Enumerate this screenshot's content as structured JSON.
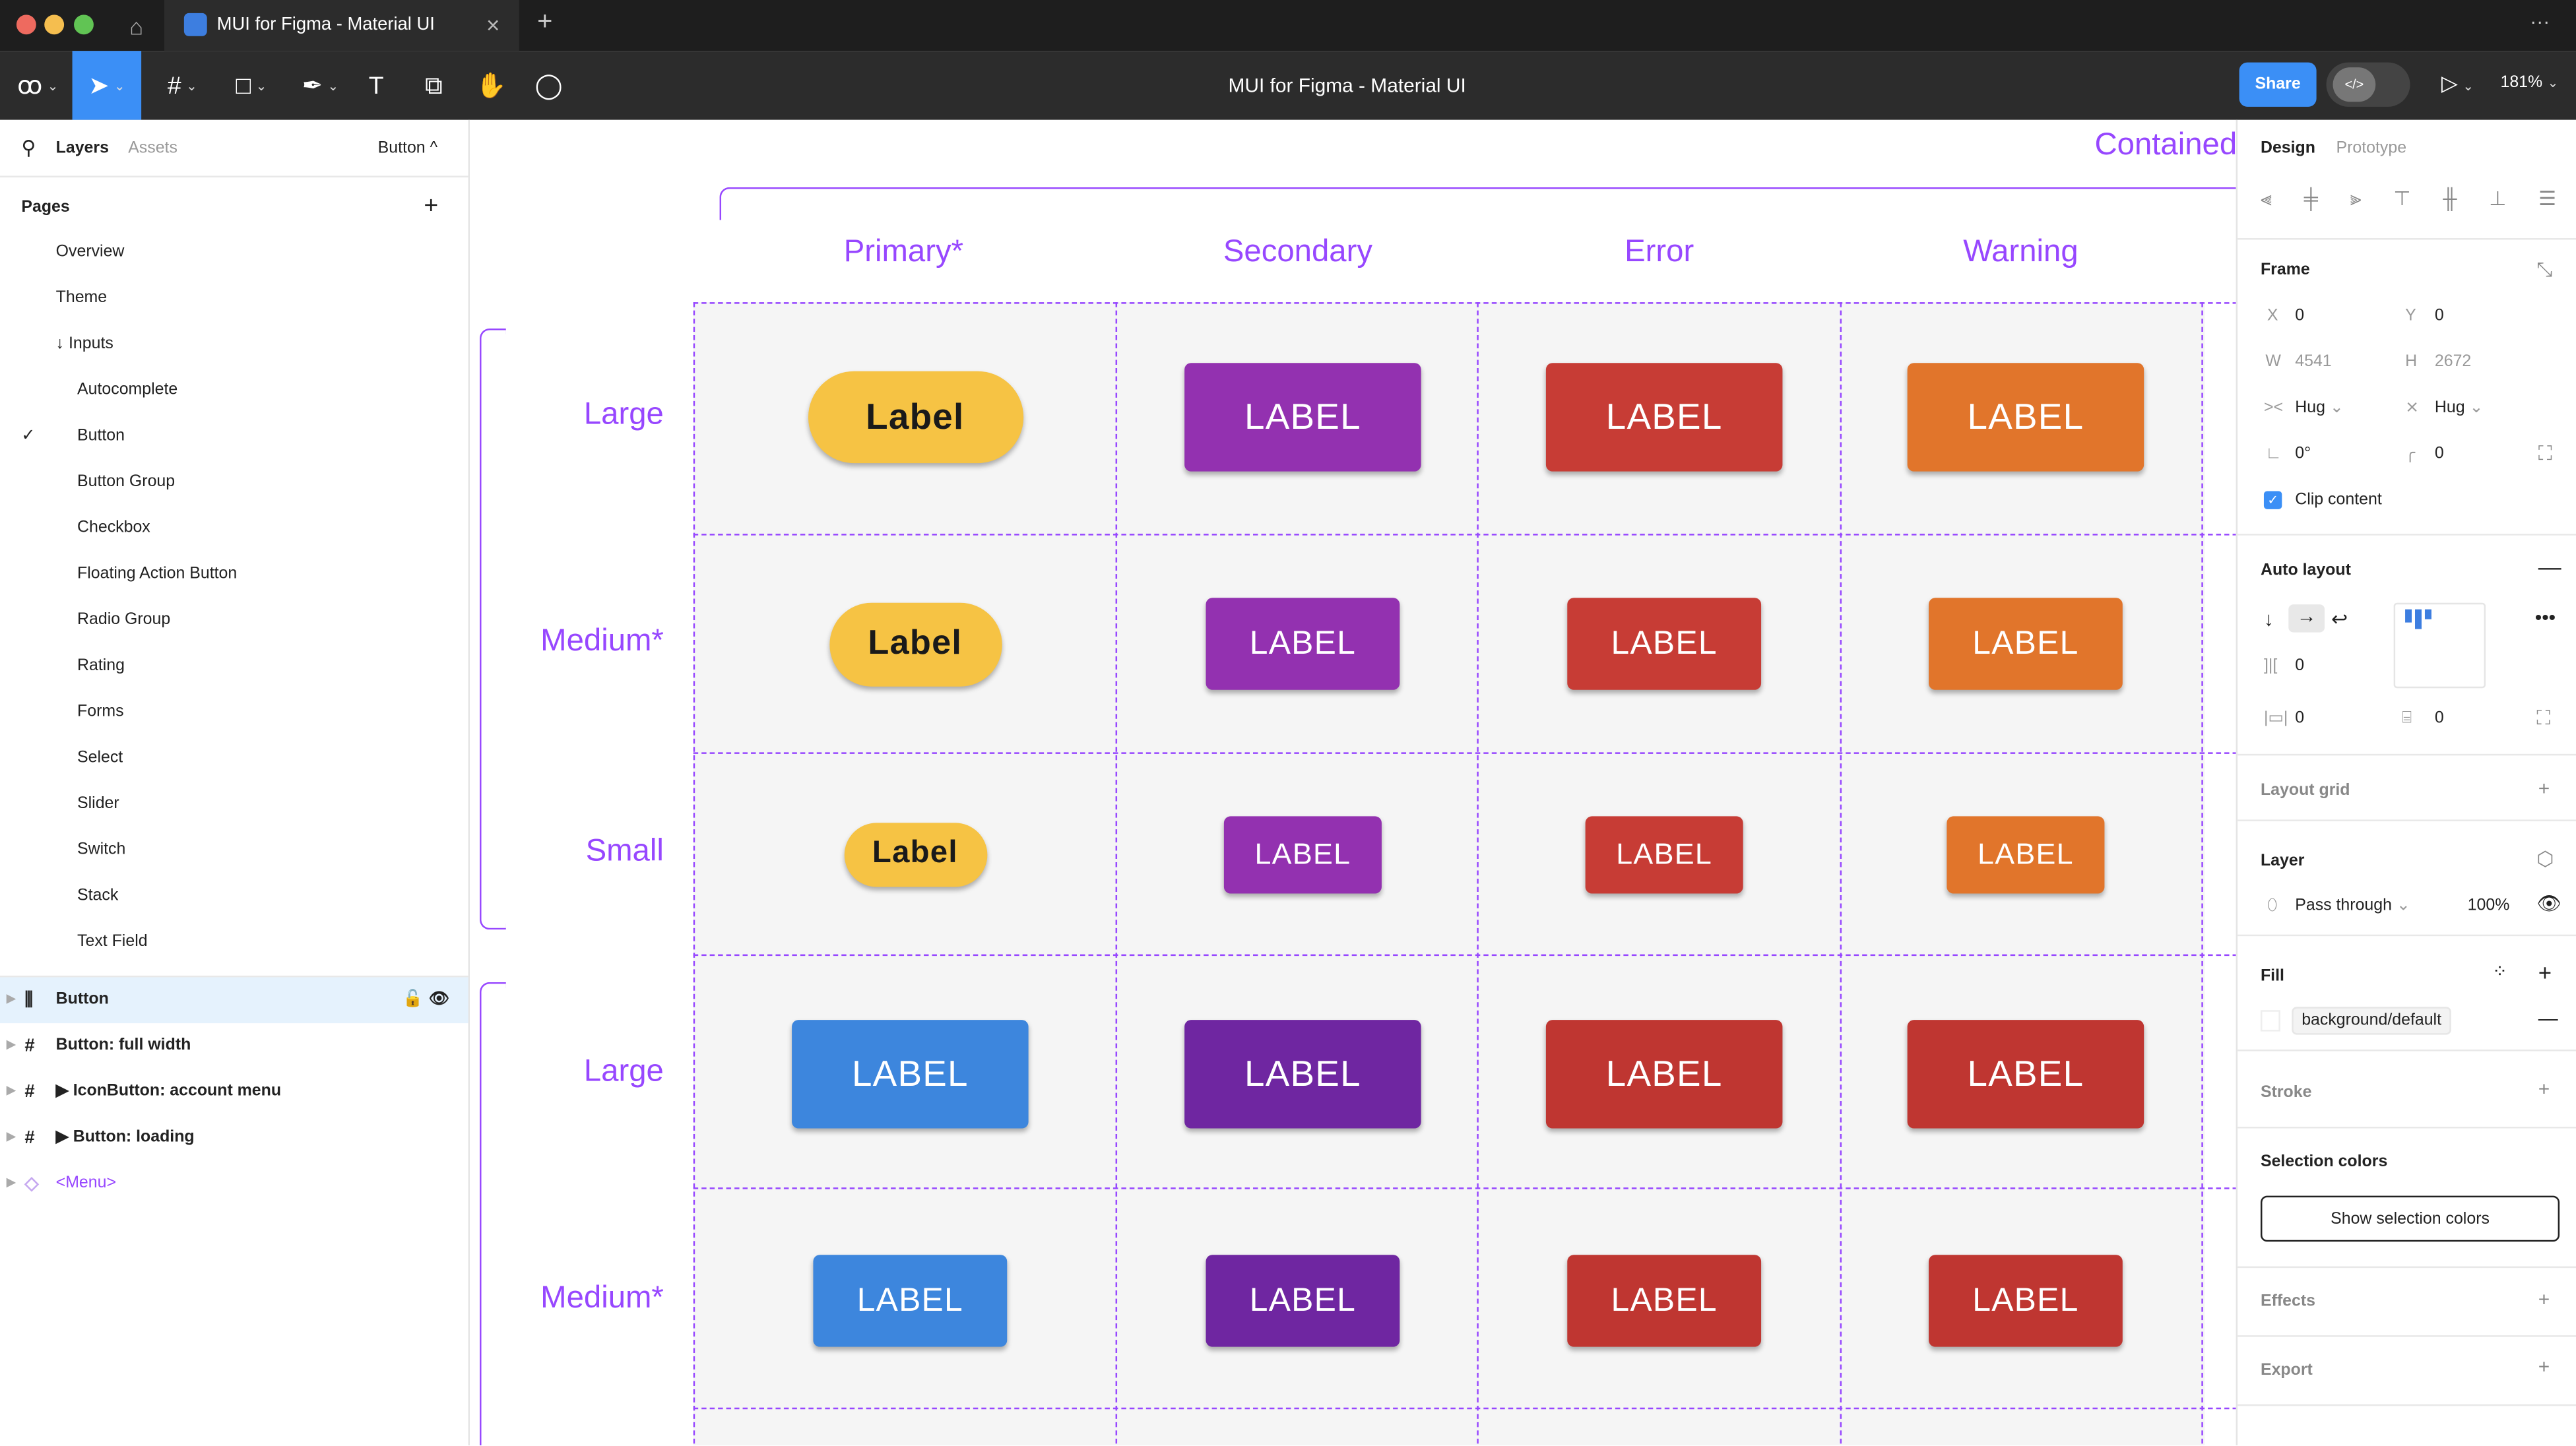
{
  "tabbar": {
    "tab_title": "MUI for Figma - Material UI",
    "close": "×",
    "new_tab": "+",
    "more": "···"
  },
  "toolbar": {
    "file_title": "MUI for Figma - Material UI",
    "share_label": "Share",
    "code_icon": "</>",
    "zoom": "181%"
  },
  "left": {
    "tab_layers": "Layers",
    "tab_assets": "Assets",
    "page_selector": "Button ^",
    "pages_title": "Pages",
    "add": "+",
    "pages": [
      {
        "label": "Overview",
        "indent": 0
      },
      {
        "label": "Theme",
        "indent": 0
      },
      {
        "label": "↓ Inputs",
        "indent": 0
      },
      {
        "label": "Autocomplete",
        "indent": 1
      },
      {
        "label": "Button",
        "indent": 1,
        "selected": true
      },
      {
        "label": "Button Group",
        "indent": 1
      },
      {
        "label": "Checkbox",
        "indent": 1
      },
      {
        "label": "Floating Action Button",
        "indent": 1
      },
      {
        "label": "Radio Group",
        "indent": 1
      },
      {
        "label": "Rating",
        "indent": 1
      },
      {
        "label": "Forms",
        "indent": 1
      },
      {
        "label": "Select",
        "indent": 1
      },
      {
        "label": "Slider",
        "indent": 1
      },
      {
        "label": "Switch",
        "indent": 1
      },
      {
        "label": "Stack",
        "indent": 1
      },
      {
        "label": "Text Field",
        "indent": 1
      }
    ],
    "layers": [
      {
        "label": "Button",
        "icon": "auto-layout-icon",
        "selected": true
      },
      {
        "label": "Button: full width",
        "icon": "frame-icon"
      },
      {
        "label": "▶ IconButton: account menu",
        "icon": "frame-icon"
      },
      {
        "label": "▶ Button: loading",
        "icon": "frame-icon"
      },
      {
        "label": "<Menu>",
        "icon": "component-icon",
        "purple": true
      }
    ]
  },
  "canvas": {
    "section_title": "Contained",
    "columns": [
      "Primary*",
      "Secondary",
      "Error",
      "Warning"
    ],
    "rows": [
      {
        "label": "Large",
        "cells": [
          {
            "text": "Label",
            "color": "#f6c344"
          },
          {
            "text": "LABEL",
            "color": "#9331b0"
          },
          {
            "text": "LABEL",
            "color": "#c73c35"
          },
          {
            "text": "LABEL",
            "color": "#e1752b"
          }
        ]
      },
      {
        "label": "Medium*",
        "cells": [
          {
            "text": "Label",
            "color": "#f6c344"
          },
          {
            "text": "LABEL",
            "color": "#9331b0"
          },
          {
            "text": "LABEL",
            "color": "#c73c35"
          },
          {
            "text": "LABEL",
            "color": "#e1752b"
          }
        ]
      },
      {
        "label": "Small",
        "cells": [
          {
            "text": "Label",
            "color": "#f6c344"
          },
          {
            "text": "LABEL",
            "color": "#9331b0"
          },
          {
            "text": "LABEL",
            "color": "#c73c35"
          },
          {
            "text": "LABEL",
            "color": "#e1752b"
          }
        ]
      },
      {
        "label": "Large",
        "cells": [
          {
            "text": "LABEL",
            "color": "#3d86dd"
          },
          {
            "text": "LABEL",
            "color": "#6f26a1"
          },
          {
            "text": "LABEL",
            "color": "#bf3631"
          },
          {
            "text": "LABEL",
            "color": "#bf3631"
          }
        ]
      },
      {
        "label": "Medium*",
        "cells": [
          {
            "text": "LABEL",
            "color": "#3d86dd"
          },
          {
            "text": "LABEL",
            "color": "#6f26a1"
          },
          {
            "text": "LABEL",
            "color": "#bf3631"
          },
          {
            "text": "LABEL",
            "color": "#bf3631"
          }
        ]
      }
    ]
  },
  "right": {
    "tab_design": "Design",
    "tab_prototype": "Prototype",
    "frame_title": "Frame",
    "x_label": "X",
    "x": "0",
    "y_label": "Y",
    "y": "0",
    "w_label": "W",
    "w": "4541",
    "h_label": "H",
    "h": "2672",
    "hug_w": "Hug",
    "hug_h": "Hug",
    "rotation": "0°",
    "radius": "0",
    "clip_label": "Clip content",
    "clip_checked": true,
    "auto_layout": "Auto layout",
    "gap": "0",
    "pad_h": "0",
    "pad_v": "0",
    "layout_grid": "Layout grid",
    "layer": "Layer",
    "blend": "Pass through",
    "opacity": "100%",
    "fill": "Fill",
    "fill_style": "background/default",
    "stroke": "Stroke",
    "selection_colors": "Selection colors",
    "show_selection": "Show selection colors",
    "effects": "Effects",
    "export": "Export"
  },
  "colors": {
    "accent": "#0d99ff",
    "canvas_purple": "#9747ff",
    "share": "#3b8ff6"
  }
}
